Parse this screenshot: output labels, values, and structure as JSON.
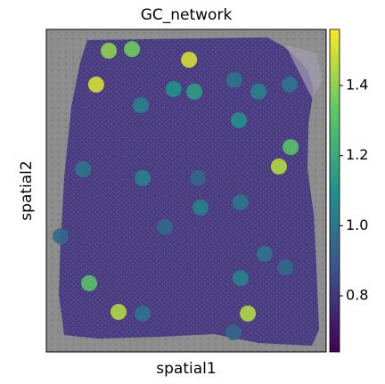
{
  "chart_data": {
    "type": "spatial-scatter",
    "title": "GC_network",
    "x_label": "spatial1",
    "y_label": "spatial2",
    "xlim": [
      0,
      100
    ],
    "ylim": [
      0,
      100
    ],
    "colormap": "viridis",
    "clim": [
      0.64,
      1.56
    ],
    "cticks": [
      0.8,
      {
        "value": 1.0,
        "label": "1.0"
      },
      1.2,
      1.4
    ],
    "x": [
      51.0,
      22.3,
      30.6,
      17.8,
      45.5,
      52.9,
      67.2,
      75.8,
      86.9,
      33.8,
      68.8,
      87.3,
      83.1,
      34.4,
      54.1,
      13.1,
      55.1,
      69.4,
      42.4,
      78.0,
      69.4,
      15.3,
      25.8,
      72.0,
      34.4,
      66.9,
      85.4,
      5.1
    ],
    "y": [
      90.6,
      93.4,
      93.9,
      82.9,
      81.5,
      80.7,
      84.3,
      80.7,
      82.9,
      76.5,
      71.8,
      63.5,
      57.5,
      53.9,
      53.9,
      56.6,
      44.8,
      46.4,
      38.7,
      30.4,
      22.9,
      21.3,
      12.4,
      11.9,
      11.9,
      6.1,
      26.2,
      35.9
    ],
    "values": [
      1.5,
      1.4,
      1.35,
      1.5,
      1.1,
      1.15,
      1.0,
      1.05,
      1.0,
      1.05,
      1.1,
      1.3,
      1.45,
      1.05,
      0.95,
      1.0,
      1.05,
      1.0,
      0.95,
      1.0,
      1.05,
      1.3,
      1.45,
      1.45,
      1.0,
      0.95,
      0.95,
      0.95
    ]
  }
}
